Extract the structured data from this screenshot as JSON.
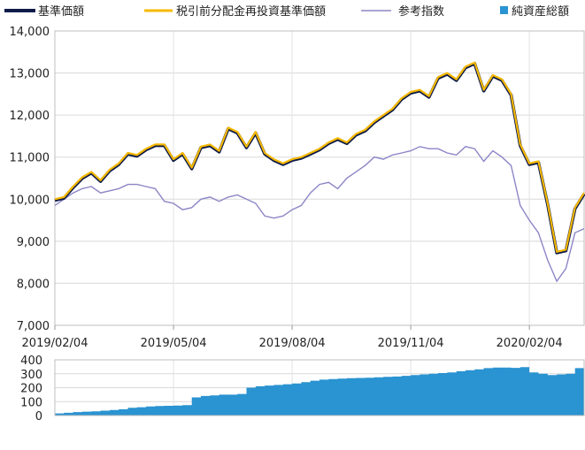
{
  "chart_data": [
    {
      "type": "line",
      "x_dates": [
        "2019-02-04",
        "2019-02-11",
        "2019-02-18",
        "2019-02-25",
        "2019-03-04",
        "2019-03-11",
        "2019-03-18",
        "2019-03-25",
        "2019-04-01",
        "2019-04-08",
        "2019-04-15",
        "2019-04-22",
        "2019-05-06",
        "2019-05-13",
        "2019-05-20",
        "2019-05-27",
        "2019-06-03",
        "2019-06-10",
        "2019-06-17",
        "2019-06-24",
        "2019-07-01",
        "2019-07-08",
        "2019-07-15",
        "2019-07-22",
        "2019-07-29",
        "2019-08-05",
        "2019-08-12",
        "2019-08-19",
        "2019-08-26",
        "2019-09-02",
        "2019-09-09",
        "2019-09-16",
        "2019-09-23",
        "2019-09-30",
        "2019-10-07",
        "2019-10-14",
        "2019-10-21",
        "2019-10-28",
        "2019-11-04",
        "2019-11-11",
        "2019-11-18",
        "2019-11-25",
        "2019-12-02",
        "2019-12-09",
        "2019-12-16",
        "2019-12-23",
        "2020-01-06",
        "2020-01-13",
        "2020-01-20",
        "2020-01-27",
        "2020-02-03",
        "2020-02-10",
        "2020-02-17",
        "2020-02-24",
        "2020-03-02",
        "2020-03-09",
        "2020-03-16",
        "2020-03-23",
        "2020-03-30"
      ],
      "x_tick_labels": [
        "2019/02/04",
        "2019/05/04",
        "2019/08/04",
        "2019/11/04",
        "2020/02/04"
      ],
      "ylim": [
        7000,
        14000
      ],
      "y_ticks": [
        7000,
        8000,
        9000,
        10000,
        11000,
        12000,
        13000,
        14000
      ],
      "y_tick_labels": [
        "7,000",
        "8,000",
        "9,000",
        "10,000",
        "11,000",
        "12,000",
        "13,000",
        "14,000"
      ],
      "legend_position": "top",
      "series": [
        {
          "name": "基準価額",
          "color": "#0d1b4a",
          "values": [
            10000,
            10050,
            10300,
            10520,
            10650,
            10450,
            10700,
            10850,
            11100,
            11050,
            11200,
            11300,
            11300,
            10950,
            11100,
            10750,
            11250,
            11300,
            11150,
            11700,
            11600,
            11250,
            11600,
            11100,
            10950,
            10850,
            10950,
            11000,
            11100,
            11200,
            11350,
            11450,
            11350,
            11550,
            11650,
            11850,
            12000,
            12150,
            12400,
            12550,
            12600,
            12450,
            12900,
            13000,
            12850,
            13150,
            13250,
            12600,
            12950,
            12850,
            12500,
            11300,
            10850,
            10900,
            9900,
            8750,
            8800,
            9800,
            10150
          ]
        },
        {
          "name": "税引前分配金再投資基準価額",
          "color": "#f5b800",
          "values": [
            10000,
            10050,
            10300,
            10520,
            10650,
            10450,
            10700,
            10850,
            11100,
            11050,
            11200,
            11300,
            11300,
            10950,
            11100,
            10750,
            11250,
            11300,
            11150,
            11700,
            11600,
            11250,
            11600,
            11100,
            10950,
            10850,
            10950,
            11000,
            11100,
            11200,
            11350,
            11450,
            11350,
            11550,
            11650,
            11850,
            12000,
            12150,
            12400,
            12550,
            12600,
            12450,
            12900,
            13000,
            12850,
            13150,
            13250,
            12600,
            12950,
            12850,
            12500,
            11300,
            10850,
            10900,
            9900,
            8750,
            8800,
            9800,
            10150
          ]
        },
        {
          "name": "参考指数",
          "color": "#8c86c6",
          "values": [
            9850,
            10000,
            10150,
            10250,
            10300,
            10150,
            10200,
            10250,
            10350,
            10350,
            10300,
            10250,
            9950,
            9900,
            9750,
            9800,
            10000,
            10050,
            9950,
            10050,
            10100,
            10000,
            9900,
            9600,
            9550,
            9600,
            9750,
            9850,
            10150,
            10350,
            10400,
            10250,
            10500,
            10650,
            10800,
            11000,
            10950,
            11050,
            11100,
            11150,
            11250,
            11200,
            11200,
            11100,
            11050,
            11250,
            11200,
            10900,
            11150,
            11000,
            10800,
            9850,
            9500,
            9200,
            8550,
            8050,
            8350,
            9200,
            9300
          ]
        }
      ]
    },
    {
      "type": "area",
      "name": "純資産総額",
      "color": "#2a93d1",
      "ylim": [
        0,
        400
      ],
      "y_ticks": [
        0,
        100,
        200,
        300,
        400
      ],
      "y_tick_labels": [
        "0",
        "100",
        "200",
        "300",
        "400"
      ],
      "values": [
        15,
        20,
        25,
        28,
        30,
        35,
        40,
        45,
        55,
        60,
        65,
        68,
        70,
        72,
        75,
        130,
        140,
        145,
        150,
        150,
        155,
        200,
        210,
        215,
        220,
        225,
        230,
        240,
        250,
        258,
        262,
        265,
        268,
        270,
        272,
        275,
        278,
        280,
        285,
        290,
        295,
        300,
        305,
        310,
        318,
        325,
        332,
        340,
        345,
        345,
        342,
        348,
        310,
        300,
        290,
        295,
        300,
        340,
        350
      ]
    }
  ]
}
